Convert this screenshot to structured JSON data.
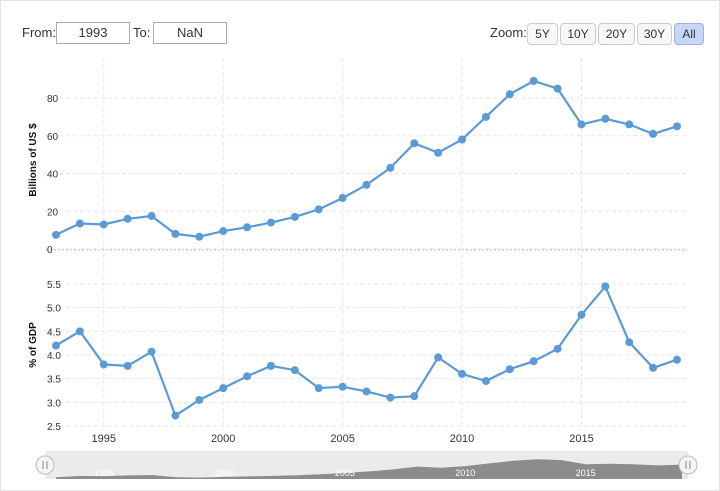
{
  "range": {
    "from_label": "From:",
    "from_value": "1993",
    "to_label": "To:",
    "to_value": "NaN"
  },
  "zoom": {
    "label": "Zoom:",
    "buttons": [
      "5Y",
      "10Y",
      "20Y",
      "30Y",
      "All"
    ],
    "active": "All"
  },
  "colors": {
    "series": "#5b9bd5",
    "navigator_fill": "#8c8c8c"
  },
  "chart_data": [
    {
      "type": "line",
      "title": "",
      "ylabel": "Billions of US $",
      "xlabel": "",
      "ylim": [
        0,
        90
      ],
      "yticks": [
        0,
        20,
        40,
        60,
        80
      ],
      "x": [
        1993,
        1994,
        1995,
        1996,
        1997,
        1998,
        1999,
        2000,
        2001,
        2002,
        2003,
        2004,
        2005,
        2006,
        2007,
        2008,
        2009,
        2010,
        2011,
        2012,
        2013,
        2014,
        2015,
        2016,
        2017,
        2018,
        2019
      ],
      "values": [
        7.5,
        13.5,
        13,
        16,
        17.5,
        8,
        6.5,
        9.5,
        11.5,
        14,
        17,
        21,
        27,
        34,
        43,
        56,
        51,
        58,
        70,
        82,
        89,
        85,
        66,
        69,
        66,
        61,
        65
      ],
      "grid": true
    },
    {
      "type": "line",
      "title": "",
      "ylabel": "% of GDP",
      "xlabel": "",
      "ylim": [
        2.4,
        5.6
      ],
      "yticks": [
        "2.5",
        "3.0",
        "3.5",
        "4.0",
        "4.5",
        "5.0",
        "5.5"
      ],
      "x": [
        1993,
        1994,
        1995,
        1996,
        1997,
        1998,
        1999,
        2000,
        2001,
        2002,
        2003,
        2004,
        2005,
        2006,
        2007,
        2008,
        2009,
        2010,
        2011,
        2012,
        2013,
        2014,
        2015,
        2016,
        2017,
        2018,
        2019
      ],
      "values": [
        4.2,
        4.5,
        3.8,
        3.77,
        4.07,
        2.72,
        3.05,
        3.3,
        3.55,
        3.77,
        3.68,
        3.3,
        3.33,
        3.23,
        3.1,
        3.13,
        3.95,
        3.6,
        3.45,
        3.7,
        3.87,
        4.13,
        4.85,
        5.45,
        4.27,
        3.73,
        3.9
      ],
      "grid": true
    }
  ],
  "x_axis": {
    "ticks": [
      1995,
      2000,
      2005,
      2010,
      2015
    ],
    "range": [
      1993,
      2019
    ]
  },
  "navigator": {
    "ticks": [
      "1995",
      "2000",
      "2005",
      "2010",
      "2015"
    ]
  }
}
